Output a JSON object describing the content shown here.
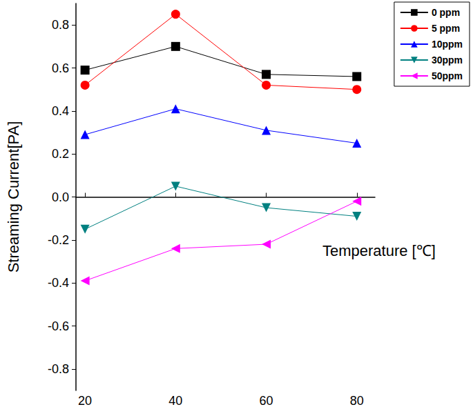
{
  "chart_data": {
    "type": "line",
    "x_label": "Temperature [℃]",
    "y_label": "Streaming Current[PA]",
    "x": [
      20,
      40,
      60,
      80
    ],
    "xlim": [
      18,
      84
    ],
    "xticks": [
      20,
      40,
      60,
      80
    ],
    "ylim": [
      -0.9,
      0.9
    ],
    "yticks": [
      -0.8,
      -0.6,
      -0.4,
      -0.2,
      {
        "value": 0,
        "label": "0.0"
      },
      0.2,
      0.4,
      0.6,
      0.8
    ],
    "grid": false,
    "legend": "top-right",
    "series": [
      {
        "name": "0 ppm",
        "color": "#000000",
        "marker": "square",
        "values": [
          0.59,
          0.7,
          0.57,
          0.56
        ]
      },
      {
        "name": "5 ppm",
        "color": "#ff0000",
        "marker": "circle",
        "values": [
          0.52,
          0.85,
          0.52,
          0.5
        ]
      },
      {
        "name": "10ppm",
        "color": "#0000ff",
        "marker": "triangle_up",
        "values": [
          0.29,
          0.41,
          0.31,
          0.25
        ]
      },
      {
        "name": "30ppm",
        "color": "#008080",
        "marker": "triangle_down",
        "values": [
          -0.15,
          0.05,
          -0.05,
          -0.09
        ]
      },
      {
        "name": "50ppm",
        "color": "#ff00ff",
        "marker": "triangle_left",
        "values": [
          -0.39,
          -0.24,
          -0.22,
          -0.02
        ]
      }
    ]
  }
}
